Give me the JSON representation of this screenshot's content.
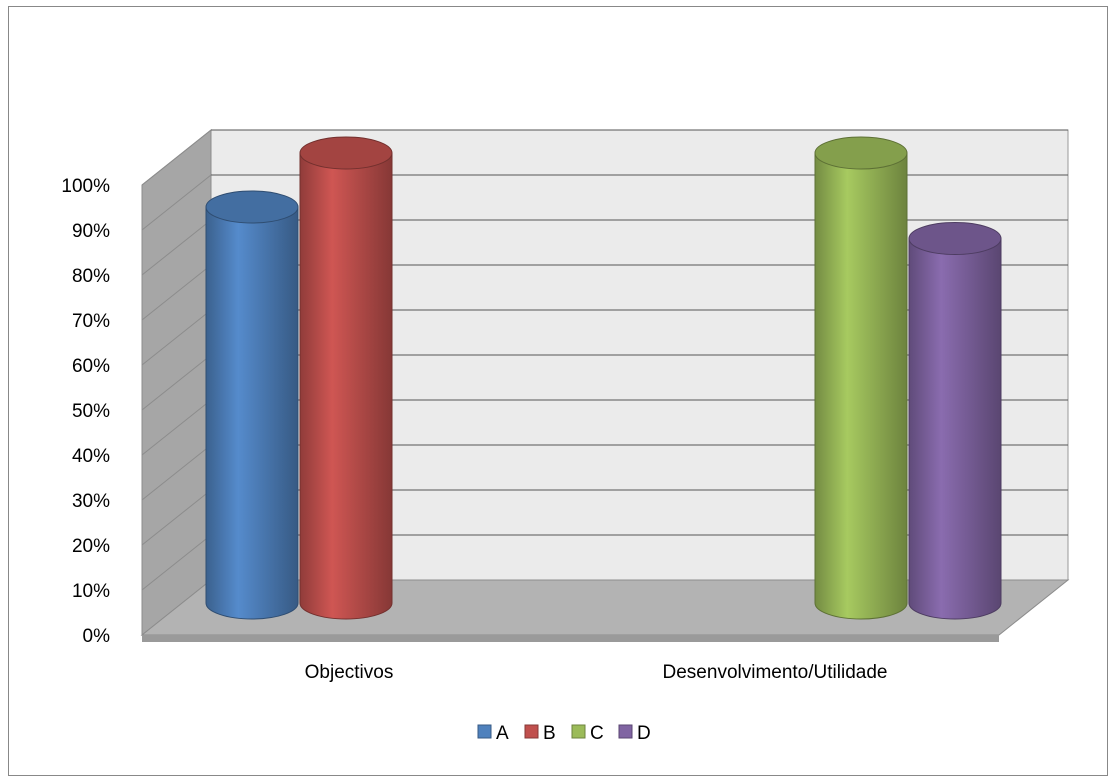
{
  "chart_data": {
    "type": "bar",
    "style": "3d-cylinder",
    "categories": [
      "Objectivos",
      "Desenvolvimento/Utilidade"
    ],
    "series": [
      {
        "name": "A",
        "color": "#4F81BD",
        "values": [
          88,
          null
        ]
      },
      {
        "name": "B",
        "color": "#C0504D",
        "values": [
          100,
          null
        ]
      },
      {
        "name": "C",
        "color": "#9BBB59",
        "values": [
          null,
          100
        ]
      },
      {
        "name": "D",
        "color": "#8064A2",
        "values": [
          null,
          81
        ]
      }
    ],
    "title": "",
    "xlabel": "",
    "ylabel": "",
    "ylim": [
      0,
      100
    ],
    "yticks": [
      "0%",
      "10%",
      "20%",
      "30%",
      "40%",
      "50%",
      "60%",
      "70%",
      "80%",
      "90%",
      "100%"
    ],
    "grid": true,
    "legend": "bottom"
  }
}
